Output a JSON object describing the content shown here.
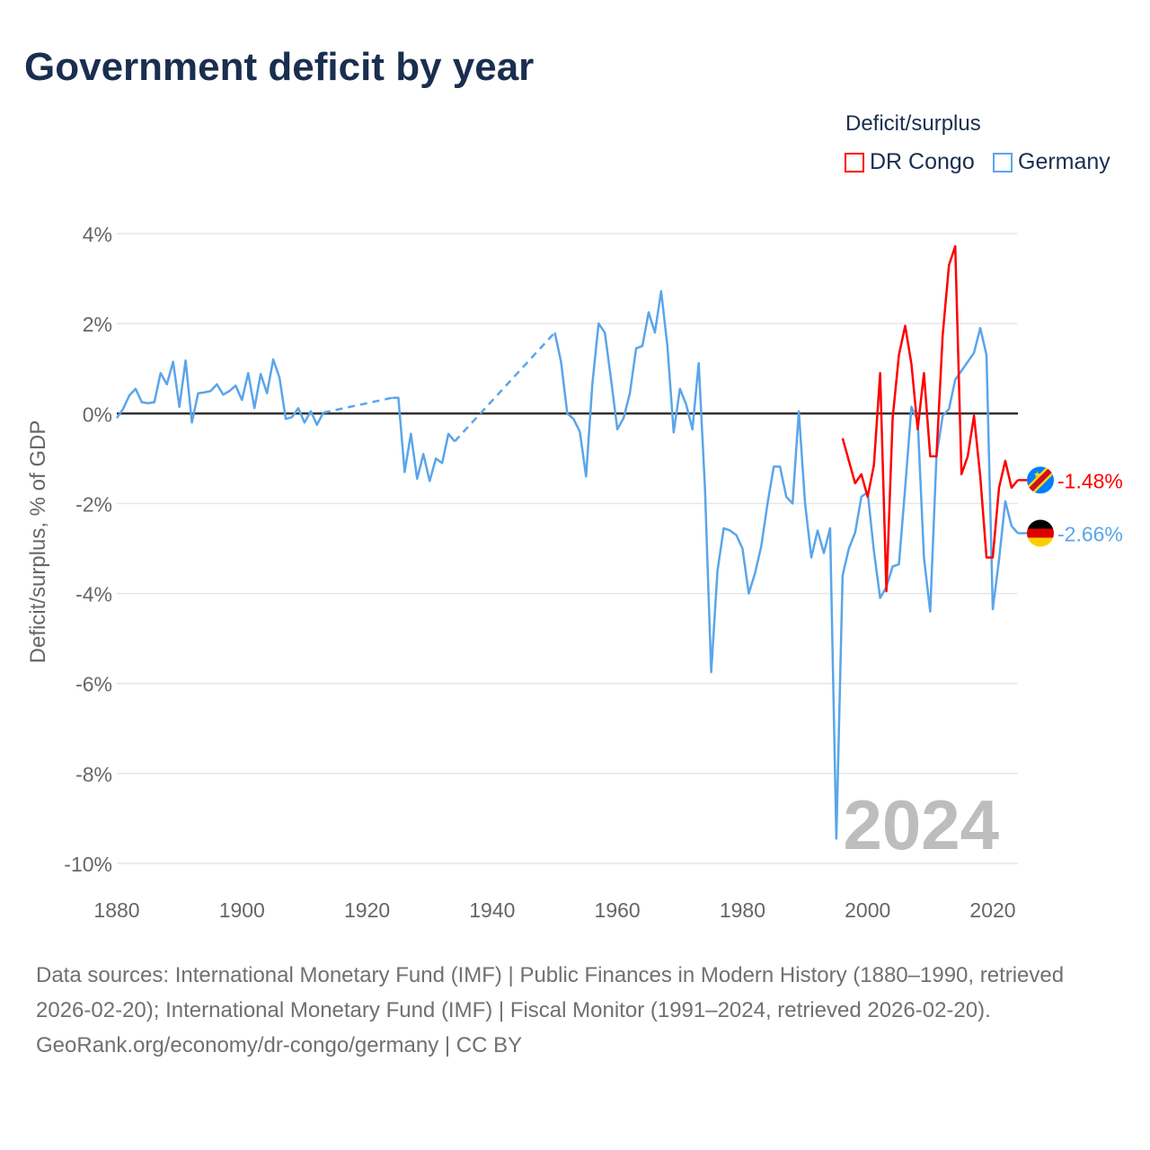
{
  "title": "Government deficit by year",
  "legend": {
    "title": "Deficit/surplus",
    "items": [
      {
        "label": "DR Congo",
        "color": "#ff0000"
      },
      {
        "label": "Germany",
        "color": "#5aa5ea"
      }
    ]
  },
  "chart_data": {
    "type": "line",
    "title": "Government deficit by year",
    "xlabel": "",
    "ylabel": "Deficit/surplus, % of GDP",
    "xlim": [
      1880,
      2024
    ],
    "ylim": [
      -10,
      4
    ],
    "xticks": [
      1880,
      1900,
      1920,
      1940,
      1960,
      1980,
      2000,
      2020
    ],
    "xtick_labels": [
      "1880",
      "1900",
      "1920",
      "1940",
      "1960",
      "1980",
      "2000",
      "2020"
    ],
    "yticks": [
      4,
      2,
      0,
      -2,
      -4,
      -6,
      -8,
      -10
    ],
    "ytick_labels": [
      "4%",
      "2%",
      "0%",
      "-2%",
      "-4%",
      "-6%",
      "-8%",
      "-10%"
    ],
    "grid": true,
    "year_watermark": "2024",
    "series": [
      {
        "name": "Germany",
        "color": "#5aa5ea",
        "end_label": "-2.66%",
        "flag": "germany",
        "x": [
          1880,
          1881,
          1882,
          1883,
          1884,
          1885,
          1886,
          1887,
          1888,
          1889,
          1890,
          1891,
          1892,
          1893,
          1894,
          1895,
          1896,
          1897,
          1898,
          1899,
          1900,
          1901,
          1902,
          1903,
          1904,
          1905,
          1906,
          1907,
          1908,
          1909,
          1910,
          1911,
          1912,
          1913,
          1924,
          1925,
          1926,
          1927,
          1928,
          1929,
          1930,
          1931,
          1932,
          1933,
          1934,
          1950,
          1951,
          1952,
          1953,
          1954,
          1955,
          1956,
          1957,
          1958,
          1959,
          1960,
          1961,
          1962,
          1963,
          1964,
          1965,
          1966,
          1967,
          1968,
          1969,
          1970,
          1971,
          1972,
          1973,
          1974,
          1975,
          1976,
          1977,
          1978,
          1979,
          1980,
          1981,
          1982,
          1983,
          1984,
          1985,
          1986,
          1987,
          1988,
          1989,
          1990,
          1991,
          1992,
          1993,
          1994,
          1995,
          1996,
          1997,
          1998,
          1999,
          2000,
          2001,
          2002,
          2003,
          2004,
          2005,
          2006,
          2007,
          2008,
          2009,
          2010,
          2011,
          2012,
          2013,
          2014,
          2015,
          2016,
          2017,
          2018,
          2019,
          2020,
          2021,
          2022,
          2023,
          2024
        ],
        "y": [
          -0.1,
          0.1,
          0.4,
          0.55,
          0.25,
          0.23,
          0.25,
          0.9,
          0.65,
          1.15,
          0.15,
          1.18,
          -0.2,
          0.45,
          0.47,
          0.5,
          0.65,
          0.42,
          0.5,
          0.62,
          0.3,
          0.9,
          0.12,
          0.88,
          0.45,
          1.2,
          0.8,
          -0.12,
          -0.08,
          0.12,
          -0.2,
          0.05,
          -0.25,
          0.02,
          0.35,
          0.35,
          -1.3,
          -0.45,
          -1.45,
          -0.9,
          -1.5,
          -1.0,
          -1.1,
          -0.45,
          -0.62,
          1.8,
          1.15,
          0.0,
          -0.12,
          -0.4,
          -1.4,
          0.65,
          2.0,
          1.8,
          0.75,
          -0.35,
          -0.1,
          0.45,
          1.45,
          1.5,
          2.25,
          1.8,
          2.72,
          1.5,
          -0.42,
          0.55,
          0.2,
          -0.35,
          1.12,
          -1.65,
          -5.75,
          -3.5,
          -2.55,
          -2.6,
          -2.7,
          -3.0,
          -4.0,
          -3.55,
          -2.95,
          -2.0,
          -1.18,
          -1.18,
          -1.85,
          -2.0,
          0.05,
          -2.0,
          -3.2,
          -2.6,
          -3.1,
          -2.55,
          -9.45,
          -3.6,
          -3.0,
          -2.65,
          -1.85,
          -1.75,
          -3.05,
          -4.1,
          -3.85,
          -3.4,
          -3.35,
          -1.65,
          0.15,
          -0.15,
          -3.2,
          -4.4,
          -0.95,
          -0.05,
          0.1,
          0.75,
          0.95,
          1.15,
          1.35,
          1.9,
          1.3,
          -4.35,
          -3.25,
          -1.95,
          -2.5,
          -2.66
        ]
      },
      {
        "name": "DR Congo",
        "color": "#ff0000",
        "end_label": "-1.48%",
        "flag": "dr-congo",
        "x": [
          1996,
          1997,
          1998,
          1999,
          2000,
          2001,
          2002,
          2003,
          2004,
          2005,
          2006,
          2007,
          2008,
          2009,
          2010,
          2011,
          2012,
          2013,
          2014,
          2015,
          2016,
          2017,
          2018,
          2019,
          2020,
          2021,
          2022,
          2023,
          2024
        ],
        "y": [
          -0.55,
          -1.05,
          -1.55,
          -1.35,
          -1.85,
          -1.15,
          0.9,
          -3.95,
          -0.1,
          1.3,
          1.95,
          1.1,
          -0.35,
          0.9,
          -0.95,
          -0.95,
          1.75,
          3.3,
          3.72,
          -1.35,
          -0.95,
          -0.05,
          -1.4,
          -3.2,
          -3.2,
          -1.65,
          -1.05,
          -1.65,
          -1.48
        ]
      }
    ]
  },
  "footer": {
    "sources": "Data sources: International Monetary Fund (IMF) | Public Finances in Modern History (1880–1990, retrieved 2026-02-20); International Monetary Fund (IMF) | Fiscal Monitor (1991–2024, retrieved 2026-02-20).",
    "credit": "GeoRank.org/economy/dr-congo/germany | CC BY"
  }
}
